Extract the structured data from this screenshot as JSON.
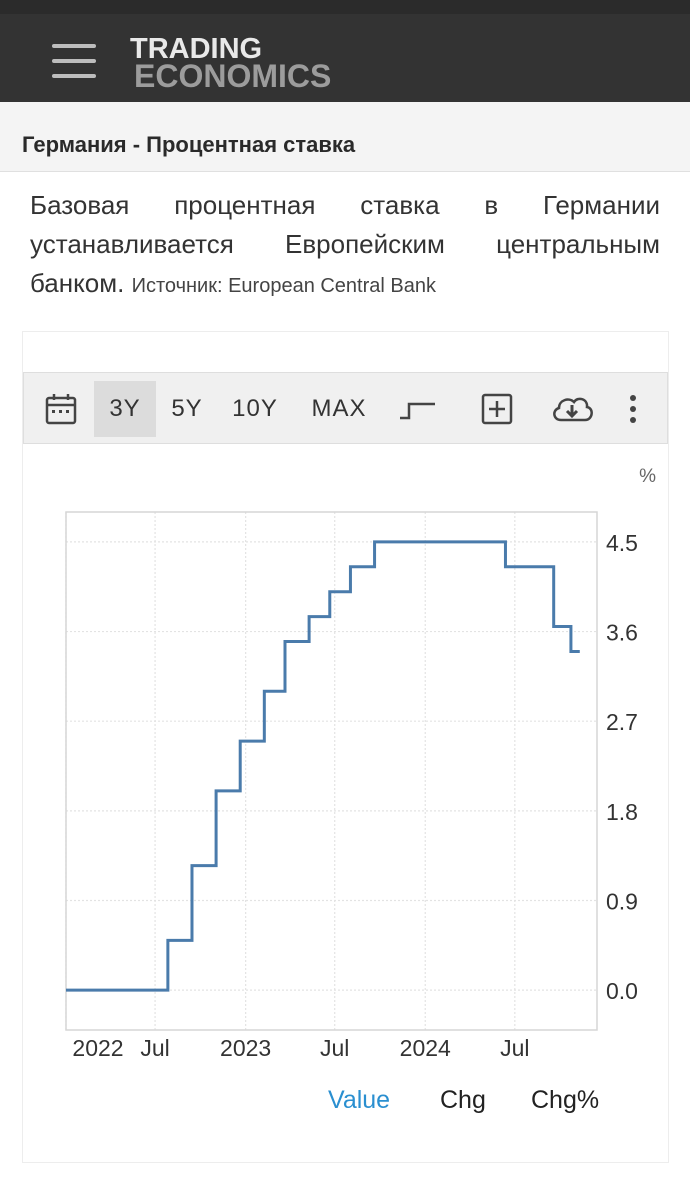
{
  "header": {
    "logo_line1": "TRADING",
    "logo_line2": "ECONOMICS",
    "menu_icon": "hamburger-menu-icon"
  },
  "page": {
    "title": "Германия - Процентная ставка",
    "description": "Базовая процентная ставка в Германии устанавливается Европейским центральным банком.",
    "source": "Источник: European Central Bank"
  },
  "toolbar": {
    "calendar_icon": "calendar-icon",
    "ranges": [
      "3Y",
      "5Y",
      "10Y",
      "MAX"
    ],
    "active_range": "3Y",
    "step_icon": "step-line-icon",
    "compare_icon": "plus-box-icon",
    "download_icon": "cloud-download-icon",
    "more_icon": "more-vertical-icon"
  },
  "legend": {
    "value": "Value",
    "chg": "Chg",
    "chg_pct": "Chg%"
  },
  "colors": {
    "line": "#4a7bab",
    "active_legend": "#2a8fd0"
  },
  "chart_data": {
    "type": "line",
    "step": true,
    "unit": "%",
    "series": [
      {
        "name": "Value",
        "x": [
          "2022-01-01",
          "2022-07-27",
          "2022-09-14",
          "2022-11-02",
          "2022-12-21",
          "2023-02-08",
          "2023-03-22",
          "2023-05-10",
          "2023-06-21",
          "2023-08-02",
          "2023-09-20",
          "2024-06-12",
          "2024-09-18",
          "2024-10-23",
          "2024-11-10"
        ],
        "values": [
          0.0,
          0.5,
          1.25,
          2.0,
          2.5,
          3.0,
          3.5,
          3.75,
          4.0,
          4.25,
          4.5,
          4.25,
          3.65,
          3.4,
          3.4
        ]
      }
    ],
    "x_ticks": [
      "2022",
      "Jul",
      "2023",
      "Jul",
      "2024",
      "Jul"
    ],
    "x_tick_dates": [
      "2022-01-01",
      "2022-07-01",
      "2023-01-01",
      "2023-07-01",
      "2024-01-01",
      "2024-07-01"
    ],
    "y_ticks": [
      "4.5",
      "3.6",
      "2.7",
      "1.8",
      "0.9",
      "0.0"
    ],
    "ylim": [
      -0.4,
      4.8
    ],
    "xlim": [
      "2022-01-01",
      "2024-12-15"
    ],
    "grid": true
  }
}
